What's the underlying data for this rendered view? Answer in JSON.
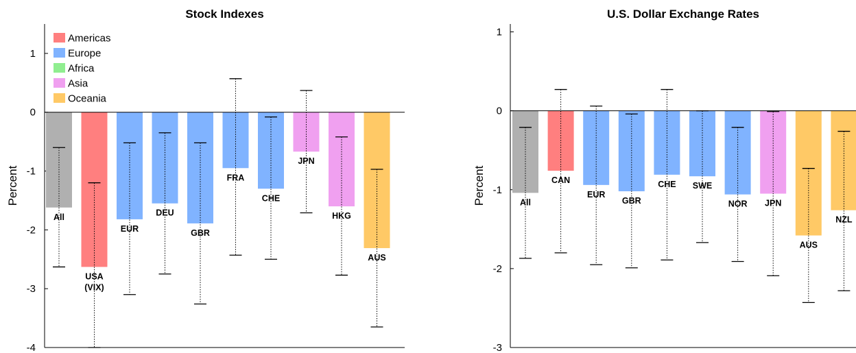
{
  "colors": {
    "All": "#b0b0b0",
    "Americas": "#ff7f7f",
    "Europe": "#80b3ff",
    "Africa": "#90ee90",
    "Asia": "#f0a0f0",
    "Oceania": "#ffc966"
  },
  "legend": {
    "items": [
      {
        "label": "Americas",
        "region": "Americas"
      },
      {
        "label": "Europe",
        "region": "Europe"
      },
      {
        "label": "Africa",
        "region": "Africa"
      },
      {
        "label": "Asia",
        "region": "Asia"
      },
      {
        "label": "Oceania",
        "region": "Oceania"
      }
    ]
  },
  "chart_data": [
    {
      "type": "bar",
      "title": "Stock Indexes",
      "xlabel": "",
      "ylabel": "Percent",
      "ylim": [
        -4,
        1.5
      ],
      "yticks": [
        -4,
        -3,
        -2,
        -1,
        0,
        1
      ],
      "legend": "top-left",
      "bars": [
        {
          "label": "All",
          "value": -1.62,
          "err_hi": -0.6,
          "err_lo": -2.63,
          "region": "All"
        },
        {
          "label": "USA\n(VIX)",
          "value": -2.63,
          "err_hi": -1.2,
          "err_lo": -4.0,
          "region": "Americas"
        },
        {
          "label": "EUR",
          "value": -1.82,
          "err_hi": -0.52,
          "err_lo": -3.1,
          "region": "Europe"
        },
        {
          "label": "DEU",
          "value": -1.55,
          "err_hi": -0.35,
          "err_lo": -2.75,
          "region": "Europe"
        },
        {
          "label": "GBR",
          "value": -1.89,
          "err_hi": -0.52,
          "err_lo": -3.26,
          "region": "Europe"
        },
        {
          "label": "FRA",
          "value": -0.95,
          "err_hi": 0.57,
          "err_lo": -2.43,
          "region": "Europe"
        },
        {
          "label": "CHE",
          "value": -1.3,
          "err_hi": -0.08,
          "err_lo": -2.5,
          "region": "Europe"
        },
        {
          "label": "JPN",
          "value": -0.67,
          "err_hi": 0.37,
          "err_lo": -1.71,
          "region": "Asia"
        },
        {
          "label": "HKG",
          "value": -1.6,
          "err_hi": -0.42,
          "err_lo": -2.77,
          "region": "Asia"
        },
        {
          "label": "AUS",
          "value": -2.31,
          "err_hi": -0.97,
          "err_lo": -3.65,
          "region": "Oceania"
        }
      ]
    },
    {
      "type": "bar",
      "title": "U.S. Dollar Exchange Rates",
      "xlabel": "",
      "ylabel": "Percent",
      "ylim": [
        -3,
        1.1
      ],
      "yticks": [
        -3,
        -2,
        -1,
        0,
        1
      ],
      "bars": [
        {
          "label": "All",
          "value": -1.04,
          "err_hi": -0.21,
          "err_lo": -1.87,
          "region": "All"
        },
        {
          "label": "CAN",
          "value": -0.76,
          "err_hi": 0.27,
          "err_lo": -1.8,
          "region": "Americas"
        },
        {
          "label": "EUR",
          "value": -0.94,
          "err_hi": 0.06,
          "err_lo": -1.95,
          "region": "Europe"
        },
        {
          "label": "GBR",
          "value": -1.02,
          "err_hi": -0.04,
          "err_lo": -1.99,
          "region": "Europe"
        },
        {
          "label": "CHE",
          "value": -0.81,
          "err_hi": 0.27,
          "err_lo": -1.89,
          "region": "Europe"
        },
        {
          "label": "SWE",
          "value": -0.83,
          "err_hi": 0.0,
          "err_lo": -1.67,
          "region": "Europe"
        },
        {
          "label": "NOR",
          "value": -1.06,
          "err_hi": -0.21,
          "err_lo": -1.91,
          "region": "Europe"
        },
        {
          "label": "JPN",
          "value": -1.05,
          "err_hi": -0.01,
          "err_lo": -2.09,
          "region": "Asia"
        },
        {
          "label": "AUS",
          "value": -1.58,
          "err_hi": -0.73,
          "err_lo": -2.43,
          "region": "Oceania"
        },
        {
          "label": "NZL",
          "value": -1.26,
          "err_hi": -0.26,
          "err_lo": -2.28,
          "region": "Oceania"
        }
      ]
    }
  ]
}
